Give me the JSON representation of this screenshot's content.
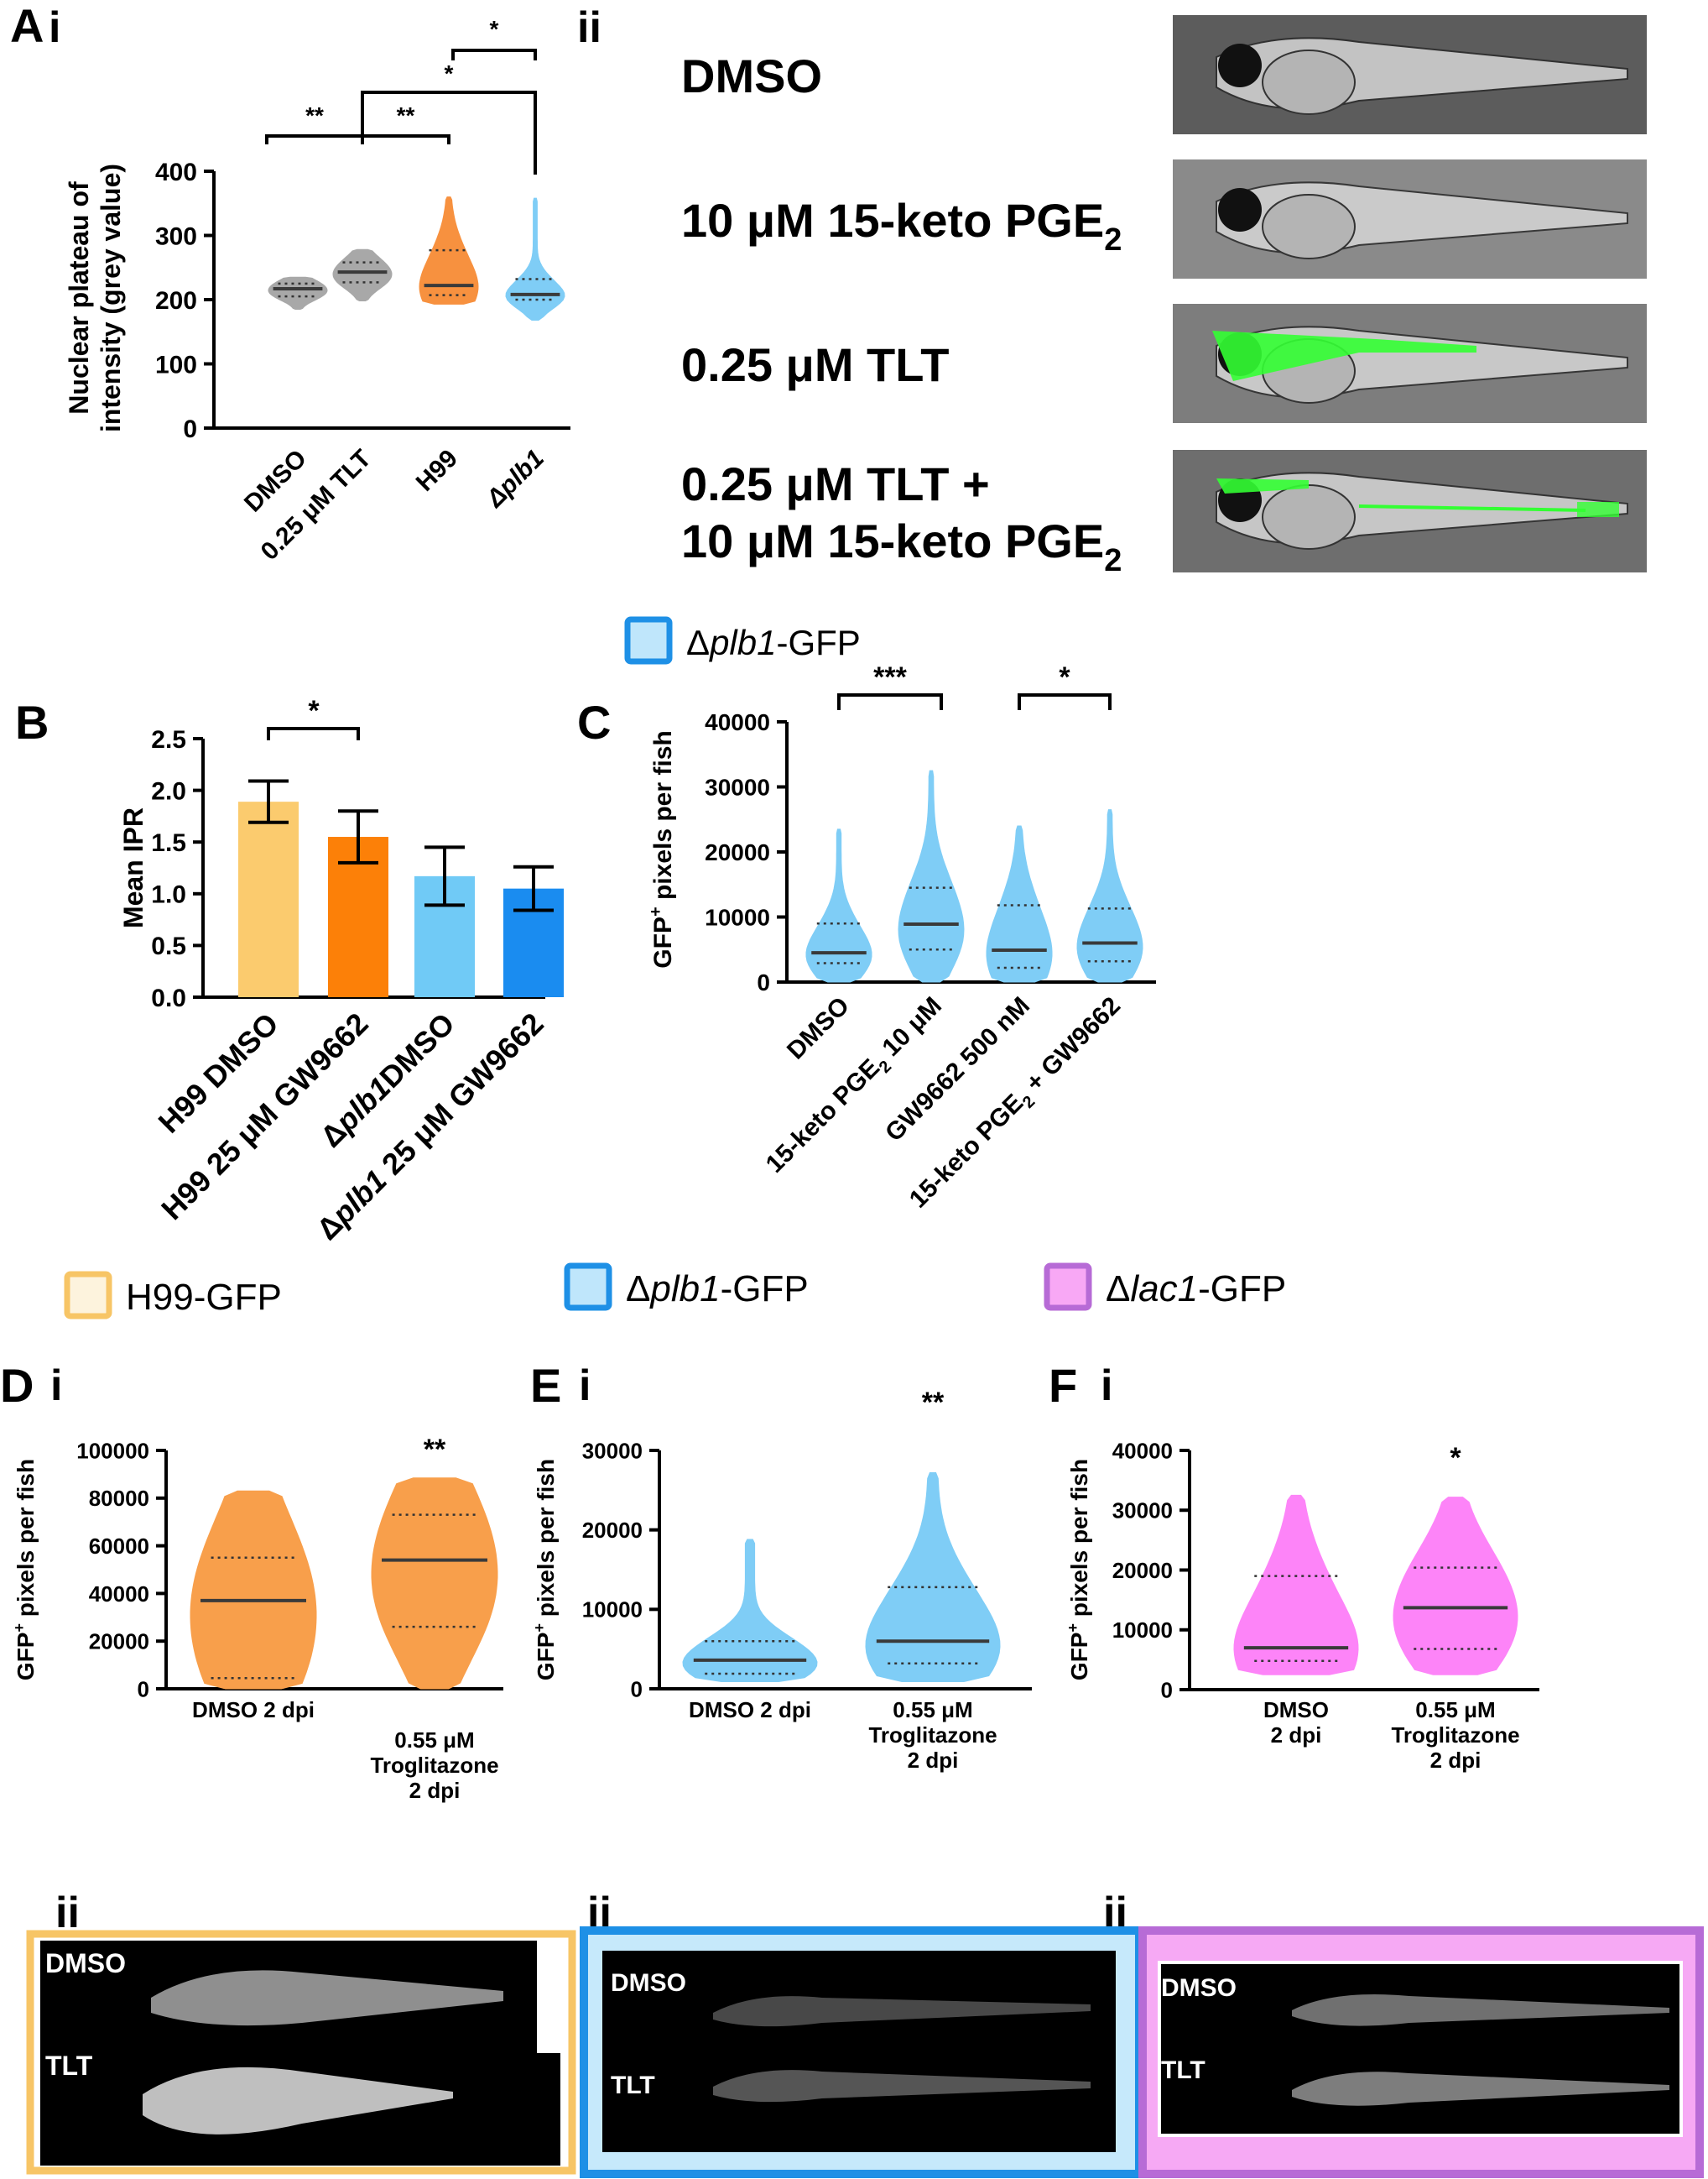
{
  "panels": {
    "A": "A",
    "Ai": "i",
    "Aii": "ii",
    "B": "B",
    "C": "C",
    "Di": [
      "D",
      "i"
    ],
    "Ei": [
      "E",
      "i"
    ],
    "Fi": [
      "F",
      "i"
    ],
    "Dii": "ii",
    "Eii": "ii",
    "Fii": "ii"
  },
  "legends": {
    "c_top": {
      "prefix": "Δ",
      "italic": "plb1",
      "suffix": "-GFP",
      "fill": "#bfe6fb",
      "stroke": "#1e90e6"
    },
    "row": [
      {
        "prefix": "",
        "italic": "",
        "suffix": "H99-GFP",
        "fill": "#fdf3dd",
        "stroke": "#f7c566"
      },
      {
        "prefix": "Δ",
        "italic": "plb1",
        "suffix": "-GFP",
        "fill": "#bfe6fb",
        "stroke": "#1e90e6"
      },
      {
        "prefix": "Δ",
        "italic": "lac1",
        "suffix": "-GFP",
        "fill": "#f8a8f5",
        "stroke": "#b76bd6"
      }
    ]
  },
  "imaging": {
    "aii_labels": [
      {
        "line1": "DMSO"
      },
      {
        "line1": "10 μM 15-keto PGE",
        "sub": "2"
      },
      {
        "line1": "0.25 μM  TLT"
      },
      {
        "line1": "0.25 μM  TLT +",
        "line2": "10 μM 15-keto PGE",
        "sub": "2"
      }
    ],
    "dii": {
      "top": "DMSO",
      "bottom": "TLT",
      "frame": "#f7c566"
    },
    "eii": {
      "top": "DMSO",
      "bottom": "TLT",
      "frame": "#1e90e6",
      "inner": "#c6e9fb"
    },
    "fii": {
      "top": "DMSO",
      "bottom": "TLT",
      "frame": "#b76bd6",
      "inner": "#f6a9f4"
    }
  },
  "chart_data": [
    {
      "id": "Ai",
      "type": "violin",
      "ylabel": [
        "Nuclear plateau of",
        "intensity (grey value)"
      ],
      "ylim": [
        0,
        400
      ],
      "yticks": [
        0,
        100,
        200,
        300,
        400
      ],
      "categories": [
        "DMSO",
        "0.25 μM TLT",
        "H99",
        "Δplb1"
      ],
      "category_italic": [
        false,
        false,
        false,
        true
      ],
      "colors": [
        "#a8a8a8",
        "#a8a8a8",
        "#f7913f",
        "#7fcdf6"
      ],
      "violins": [
        {
          "min": 185,
          "max": 235,
          "q1": 205,
          "median": 217,
          "q3": 225
        },
        {
          "min": 198,
          "max": 278,
          "q1": 227,
          "median": 243,
          "q3": 258
        },
        {
          "min": 193,
          "max": 360,
          "q1": 207,
          "median": 222,
          "q3": 277
        },
        {
          "min": 168,
          "max": 358,
          "q1": 200,
          "median": 208,
          "q3": 232
        }
      ],
      "significance": [
        {
          "from": 2,
          "to": 3,
          "label": "*"
        },
        {
          "from": 1,
          "to": 3,
          "label": "*"
        },
        {
          "from": 0,
          "to": 1,
          "label": "**"
        },
        {
          "from": 1,
          "to": 2,
          "label": "**"
        }
      ]
    },
    {
      "id": "B",
      "type": "bar",
      "ylabel": "Mean IPR",
      "ylim": [
        0,
        2.5
      ],
      "yticks": [
        "0.0",
        "0.5",
        "1.0",
        "1.5",
        "2.0",
        "2.5"
      ],
      "categories": [
        {
          "pre": "H99 DMSO"
        },
        {
          "pre": "H99 25 μM GW9662"
        },
        {
          "pre": "Δ",
          "it": "plb1",
          "post": "DMSO"
        },
        {
          "pre": "Δ",
          "it": "plb1",
          "post": " 25 μM GW9662"
        }
      ],
      "values": [
        1.89,
        1.55,
        1.17,
        1.05
      ],
      "errors": [
        0.2,
        0.25,
        0.28,
        0.21
      ],
      "colors": [
        "#fbcb6e",
        "#fc8008",
        "#70caf6",
        "#1a8cf0"
      ],
      "significance": [
        {
          "from": 0,
          "to": 1,
          "label": "*"
        }
      ]
    },
    {
      "id": "C",
      "type": "violin",
      "ylabel": "GFP+ pixels per fish",
      "ylim": [
        0,
        40000
      ],
      "yticks": [
        0,
        10000,
        20000,
        30000,
        40000
      ],
      "categories": [
        {
          "text": "DMSO"
        },
        {
          "text": "15-keto PGE",
          "sub": "2",
          "after": " 10 μM"
        },
        {
          "text": "GW9662 500 nM"
        },
        {
          "text": "15-keto PGE",
          "sub": "2",
          "after": " + GW9662"
        }
      ],
      "colors": [
        "#7fcdf6",
        "#7fcdf6",
        "#7fcdf6",
        "#7fcdf6"
      ],
      "violins": [
        {
          "min": 0,
          "max": 23500,
          "q1": 2900,
          "median": 4500,
          "q3": 9000
        },
        {
          "min": 0,
          "max": 32500,
          "q1": 5000,
          "median": 8900,
          "q3": 14500
        },
        {
          "min": 0,
          "max": 24000,
          "q1": 2200,
          "median": 4900,
          "q3": 11800
        },
        {
          "min": 0,
          "max": 26500,
          "q1": 3200,
          "median": 6000,
          "q3": 11300
        }
      ],
      "significance": [
        {
          "from": 0,
          "to": 1,
          "label": "***"
        },
        {
          "from": 2,
          "to": 3,
          "label": "*"
        }
      ]
    },
    {
      "id": "Di",
      "type": "violin",
      "ylabel": "GFP+ pixels per fish",
      "ylim": [
        0,
        100000
      ],
      "yticks": [
        0,
        20000,
        40000,
        60000,
        80000,
        100000
      ],
      "categories": [
        [
          "DMSO 2 dpi"
        ],
        [
          "0.55 μM",
          "Troglitazone",
          "2 dpi"
        ]
      ],
      "colors": [
        "#f89f4b",
        "#f89f4b"
      ],
      "violins": [
        {
          "min": 0,
          "max": 83000,
          "q1": 4500,
          "median": 37000,
          "q3": 55000
        },
        {
          "min": 0,
          "max": 88500,
          "q1": 26000,
          "median": 54000,
          "q3": 73000
        }
      ],
      "stars": {
        "index": 1,
        "label": "**"
      }
    },
    {
      "id": "Ei",
      "type": "violin",
      "ylabel": "GFP+ pixels per fish",
      "ylim": [
        0,
        30000
      ],
      "yticks": [
        0,
        10000,
        20000,
        30000
      ],
      "categories": [
        [
          "DMSO 2 dpi"
        ],
        [
          "0.55 μM",
          "Troglitazone",
          "2 dpi"
        ]
      ],
      "colors": [
        "#7fcdf6",
        "#7fcdf6"
      ],
      "violins": [
        {
          "min": 900,
          "max": 18800,
          "q1": 1900,
          "median": 3600,
          "q3": 6000
        },
        {
          "min": 900,
          "max": 27200,
          "q1": 3200,
          "median": 6000,
          "q3": 12800
        }
      ],
      "stars": {
        "index": 1,
        "label": "**"
      }
    },
    {
      "id": "Fi",
      "type": "violin",
      "ylabel": "GFP+ pixels per fish",
      "ylim": [
        0,
        40000
      ],
      "yticks": [
        0,
        10000,
        20000,
        30000,
        40000
      ],
      "categories": [
        [
          "DMSO",
          "2 dpi"
        ],
        [
          "0.55 μM",
          "Troglitazone",
          "2 dpi"
        ]
      ],
      "colors": [
        "#fd84f8",
        "#fd84f8"
      ],
      "violins": [
        {
          "min": 2500,
          "max": 32500,
          "q1": 4800,
          "median": 7000,
          "q3": 19000
        },
        {
          "min": 2500,
          "max": 32200,
          "q1": 6800,
          "median": 13700,
          "q3": 20400
        }
      ],
      "stars": {
        "index": 1,
        "label": "*"
      }
    }
  ]
}
